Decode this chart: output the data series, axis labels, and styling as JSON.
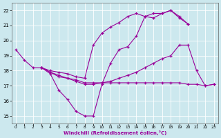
{
  "bg_color": "#cce8ee",
  "line_color": "#990099",
  "grid_color": "#ffffff",
  "xlabel": "Windchill (Refroidissement éolien,°C)",
  "xlim_min": -0.5,
  "xlim_max": 23.5,
  "ylim_min": 14.5,
  "ylim_max": 22.5,
  "xticks": [
    0,
    1,
    2,
    3,
    4,
    5,
    6,
    7,
    8,
    9,
    10,
    11,
    12,
    13,
    14,
    15,
    16,
    17,
    18,
    19,
    20,
    21,
    22,
    23
  ],
  "yticks": [
    15,
    16,
    17,
    18,
    19,
    20,
    21,
    22
  ],
  "lines": [
    {
      "x": [
        0,
        1,
        2,
        3,
        4,
        5,
        6,
        7,
        8,
        9,
        10,
        11,
        12,
        13,
        14,
        15,
        16,
        17,
        18,
        19,
        20
      ],
      "y": [
        19.4,
        18.7,
        18.2,
        18.2,
        17.8,
        16.7,
        16.1,
        15.3,
        15.0,
        15.0,
        17.1,
        18.5,
        19.4,
        19.6,
        20.3,
        21.6,
        21.8,
        21.8,
        22.0,
        21.6,
        21.1
      ]
    },
    {
      "x": [
        3,
        4,
        5,
        6,
        7,
        8,
        9,
        10,
        11,
        12,
        13,
        14,
        15,
        16,
        17,
        18,
        19,
        20
      ],
      "y": [
        18.2,
        18.0,
        17.9,
        17.8,
        17.6,
        17.5,
        19.7,
        20.5,
        20.9,
        21.2,
        21.6,
        21.8,
        21.6,
        21.5,
        21.8,
        22.0,
        21.5,
        21.1
      ]
    },
    {
      "x": [
        3,
        4,
        5,
        6,
        7,
        8,
        9,
        10,
        11,
        12,
        13,
        14,
        15,
        16,
        17,
        18,
        19,
        20,
        21,
        22,
        23
      ],
      "y": [
        18.2,
        17.9,
        17.7,
        17.5,
        17.4,
        17.2,
        17.2,
        17.2,
        17.2,
        17.2,
        17.2,
        17.2,
        17.2,
        17.2,
        17.2,
        17.2,
        17.2,
        17.1,
        17.1,
        17.0,
        17.1
      ]
    },
    {
      "x": [
        3,
        4,
        5,
        6,
        7,
        8,
        9,
        10,
        11,
        12,
        13,
        14,
        15,
        16,
        17,
        18,
        19,
        20,
        21,
        22,
        23
      ],
      "y": [
        18.2,
        17.9,
        17.6,
        17.5,
        17.3,
        17.1,
        17.1,
        17.2,
        17.3,
        17.5,
        17.7,
        17.9,
        18.2,
        18.5,
        18.8,
        19.0,
        19.7,
        19.7,
        18.0,
        17.0,
        17.1
      ]
    }
  ]
}
